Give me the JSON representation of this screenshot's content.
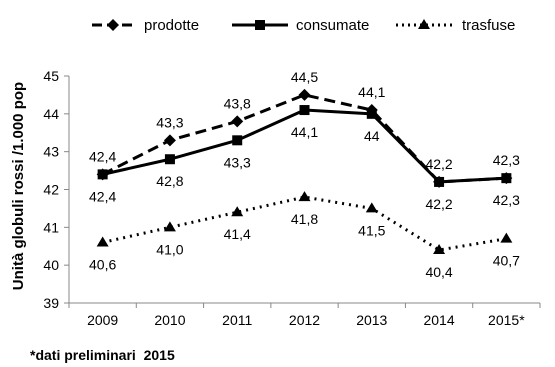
{
  "chart_data": {
    "type": "line",
    "categories": [
      "2009",
      "2010",
      "2011",
      "2012",
      "2013",
      "2014",
      "2015*"
    ],
    "ylabel": "Unità globuli rossi /1.000 pop",
    "ylim": [
      39,
      45
    ],
    "yticks": [
      "39",
      "40",
      "41",
      "42",
      "43",
      "44",
      "45"
    ],
    "grid": false,
    "legend_position": "top",
    "footnote": "*dati preliminari  2015",
    "series": [
      {
        "name": "prodotte",
        "values": [
          42.4,
          43.3,
          43.8,
          44.5,
          44.1,
          42.2,
          42.3
        ],
        "labels": [
          "42,4",
          "43,3",
          "43,8",
          "44,5",
          "44,1",
          "42,2",
          "42,3"
        ],
        "label_pos": [
          "above",
          "above",
          "above",
          "above",
          "above",
          "above",
          "above"
        ],
        "line_style": "dashed",
        "marker": "diamond",
        "color": "#000000"
      },
      {
        "name": "consumate",
        "values": [
          42.4,
          42.8,
          43.3,
          44.1,
          44.0,
          42.2,
          42.3
        ],
        "labels": [
          "42,4",
          "42,8",
          "43,3",
          "44,1",
          "44",
          "42,2",
          "42,3"
        ],
        "label_pos": [
          "below",
          "below",
          "below",
          "below",
          "below",
          "below",
          "below"
        ],
        "line_style": "solid",
        "marker": "square",
        "color": "#000000"
      },
      {
        "name": "trasfuse",
        "values": [
          40.6,
          41.0,
          41.4,
          41.8,
          41.5,
          40.4,
          40.7
        ],
        "labels": [
          "40,6",
          "41,0",
          "41,4",
          "41,8",
          "41,5",
          "40,4",
          "40,7"
        ],
        "label_pos": [
          "below",
          "below",
          "below",
          "below",
          "below",
          "below",
          "below"
        ],
        "line_style": "dotted",
        "marker": "triangle",
        "color": "#000000"
      }
    ]
  }
}
